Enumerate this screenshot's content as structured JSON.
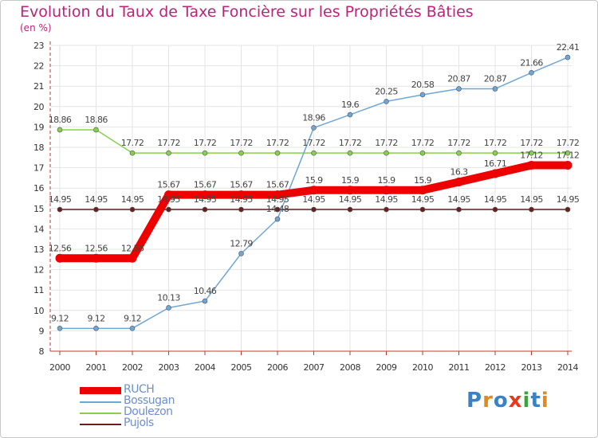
{
  "title": "Evolution du Taux de Taxe Foncière sur les Propriétés Bâties",
  "subtitle": "(en %)",
  "logo": {
    "text": "Proxiti",
    "colors": [
      "#3b82c4",
      "#e08a1e",
      "#3b82c4",
      "#e23b1e",
      "#3aa53a",
      "#3b82c4",
      "#e08a1e"
    ]
  },
  "chart_data": {
    "type": "line",
    "title": "Evolution du Taux de Taxe Foncière sur les Propriétés Bâties",
    "ylabel": "(en %)",
    "xlabel": "",
    "ylim": [
      8,
      23
    ],
    "yticks": [
      "8",
      "9",
      "10",
      "11",
      "12",
      "13",
      "14",
      "15",
      "16",
      "17",
      "18",
      "19",
      "20",
      "21",
      "22",
      "23"
    ],
    "categories": [
      "2000",
      "2001",
      "2002",
      "2003",
      "2004",
      "2005",
      "2006",
      "2007",
      "2008",
      "2009",
      "2010",
      "2011",
      "2012",
      "2013",
      "2014"
    ],
    "grid": true,
    "legend_position": "bottom-left",
    "series": [
      {
        "name": "Pujols",
        "color": "#6b1e1e",
        "bold": false,
        "values": [
          14.95,
          14.95,
          14.95,
          14.95,
          14.95,
          14.95,
          14.95,
          14.95,
          14.95,
          14.95,
          14.95,
          14.95,
          14.95,
          14.95,
          14.95
        ],
        "labels": [
          "14.95",
          "14.95",
          "14.95",
          "14.95",
          "14.95",
          "14.95",
          "14.95",
          "14.95",
          "14.95",
          "14.95",
          "14.95",
          "14.95",
          "14.95",
          "14.95",
          "14.95"
        ]
      },
      {
        "name": "Doulezon",
        "color": "#86d04e",
        "bold": false,
        "values": [
          18.86,
          18.86,
          17.72,
          17.72,
          17.72,
          17.72,
          17.72,
          17.72,
          17.72,
          17.72,
          17.72,
          17.72,
          17.72,
          17.72,
          17.72
        ],
        "labels": [
          "18.86",
          "18.86",
          "17.72",
          "17.72",
          "17.72",
          "17.72",
          "17.72",
          "17.72",
          "17.72",
          "17.72",
          "17.72",
          "17.72",
          "17.72",
          "17.72",
          "17.72"
        ]
      },
      {
        "name": "Bossugan",
        "color": "#6ea6d8",
        "bold": false,
        "values": [
          9.12,
          9.12,
          9.12,
          10.13,
          10.46,
          12.79,
          14.48,
          18.96,
          19.6,
          20.25,
          20.58,
          20.87,
          20.87,
          21.66,
          22.41
        ],
        "labels": [
          "9.12",
          "9.12",
          "9.12",
          "10.13",
          "10.46",
          "12.79",
          "14.48",
          "18.96",
          "19.6",
          "20.25",
          "20.58",
          "20.87",
          "20.87",
          "21.66",
          "22.41"
        ]
      },
      {
        "name": "RUCH",
        "color": "#ee0000",
        "bold": true,
        "values": [
          12.56,
          12.56,
          12.56,
          15.67,
          15.67,
          15.67,
          15.67,
          15.9,
          15.9,
          15.9,
          15.9,
          16.3,
          16.71,
          17.12,
          17.12
        ],
        "labels": [
          "12.56",
          "12.56",
          "12.56",
          "15.67",
          "15.67",
          "15.67",
          "15.67",
          "15.9",
          "15.9",
          "15.9",
          "15.9",
          "16.3",
          "16.71",
          "17.12",
          "17.12"
        ]
      }
    ],
    "legend": [
      {
        "name": "RUCH",
        "color": "#ee0000",
        "bold": true
      },
      {
        "name": "Bossugan",
        "color": "#6ea6d8",
        "bold": false
      },
      {
        "name": "Doulezon",
        "color": "#86d04e",
        "bold": false
      },
      {
        "name": "Pujols",
        "color": "#6b1e1e",
        "bold": false
      }
    ]
  }
}
